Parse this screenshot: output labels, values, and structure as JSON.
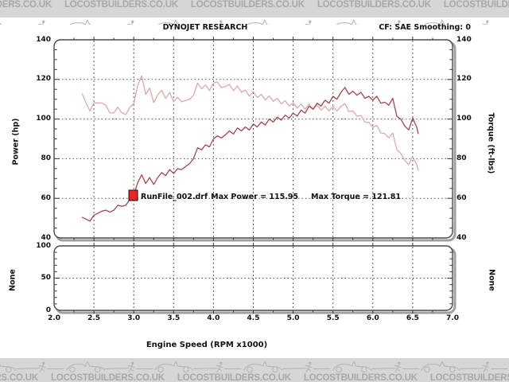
{
  "banner": {
    "text": "LOCOSTBUILDERS.CO.UK",
    "repeat": 6,
    "bg_color": "#d6d6d6",
    "text_color": "#a8a8a8",
    "art_color": "#b4b4b4"
  },
  "header": {
    "title": "DYNOJET RESEARCH",
    "correction": "CF: SAE  Smoothing: 0"
  },
  "main_chart": {
    "y_left_label": "Power (hp)",
    "y_right_label": "Torque (ft-lbs)",
    "y_ticks": [
      "140",
      "120",
      "100",
      "80",
      "60",
      "40"
    ],
    "grid_values": [
      120,
      100,
      80,
      60
    ]
  },
  "lower_chart": {
    "left_label": "None",
    "right_label": "None",
    "y_ticks": [
      "100",
      "50",
      "0"
    ],
    "grid_value": 50
  },
  "x_axis": {
    "title": "Engine Speed (RPM x1000)",
    "ticks": [
      "2.0",
      "2.5",
      "3.0",
      "3.5",
      "4.0",
      "4.5",
      "5.0",
      "5.5",
      "6.0",
      "6.5",
      "7.0"
    ],
    "grid_rpm": [
      2.5,
      3.0,
      3.5,
      4.0,
      4.5,
      5.0,
      5.5,
      6.0,
      6.5
    ]
  },
  "legend": {
    "file_label": "RunFile_002.drf",
    "max_power_label": "Max Power = 115.95",
    "max_torque_label": "Max Torque = 121.81",
    "marker_color": "#ee2222"
  },
  "colors": {
    "plot_border": "#4a4a4a",
    "plot_shadow": "#a0a0a0",
    "gridline": "#555555",
    "tick": "#333333"
  },
  "chart_data": {
    "type": "line",
    "title": "DYNOJET RESEARCH",
    "xlabel": "Engine Speed (RPM x1000)",
    "ylabel_left": "Power (hp)",
    "ylabel_right": "Torque (ft-lbs)",
    "xlim": [
      2.0,
      7.0
    ],
    "ylim": [
      40,
      140
    ],
    "lower_panel_ylim": [
      0,
      100
    ],
    "grid": true,
    "max_power": 115.95,
    "max_torque": 121.81,
    "x_rpm": [
      2.35,
      2.4,
      2.45,
      2.5,
      2.55,
      2.6,
      2.65,
      2.7,
      2.75,
      2.8,
      2.85,
      2.9,
      2.95,
      3.0,
      3.05,
      3.1,
      3.15,
      3.2,
      3.25,
      3.3,
      3.35,
      3.4,
      3.45,
      3.5,
      3.55,
      3.6,
      3.65,
      3.7,
      3.75,
      3.8,
      3.85,
      3.9,
      3.95,
      4.0,
      4.05,
      4.1,
      4.15,
      4.2,
      4.25,
      4.3,
      4.35,
      4.4,
      4.45,
      4.5,
      4.55,
      4.6,
      4.65,
      4.7,
      4.75,
      4.8,
      4.85,
      4.9,
      4.95,
      5.0,
      5.05,
      5.1,
      5.15,
      5.2,
      5.25,
      5.3,
      5.35,
      5.4,
      5.45,
      5.5,
      5.55,
      5.6,
      5.65,
      5.7,
      5.75,
      5.8,
      5.85,
      5.9,
      5.95,
      6.0,
      6.05,
      6.1,
      6.15,
      6.2,
      6.25,
      6.3,
      6.35,
      6.4,
      6.45,
      6.5,
      6.55,
      6.57
    ],
    "series": [
      {
        "name": "Power (hp)",
        "color": "#a6454e",
        "values": [
          50.5,
          49.5,
          48.5,
          51.5,
          52.5,
          53.5,
          54.0,
          53.0,
          54.0,
          56.5,
          56.0,
          56.5,
          59.5,
          61.5,
          68.0,
          71.9,
          67.5,
          70.5,
          67.0,
          70.5,
          73.0,
          71.5,
          74.5,
          72.5,
          75.0,
          74.5,
          76.0,
          77.5,
          80.0,
          85.5,
          84.5,
          87.0,
          86.0,
          90.0,
          91.5,
          90.5,
          92.0,
          94.0,
          92.5,
          95.5,
          94.0,
          96.0,
          94.5,
          97.5,
          96.0,
          98.5,
          97.0,
          100.0,
          98.5,
          101.0,
          99.5,
          102.0,
          100.5,
          103.0,
          101.5,
          104.5,
          103.0,
          106.5,
          105.0,
          108.0,
          106.5,
          109.5,
          108.0,
          111.5,
          110.0,
          113.5,
          115.95,
          112.5,
          114.0,
          112.0,
          113.5,
          110.5,
          111.5,
          109.5,
          111.5,
          108.0,
          108.5,
          107.0,
          110.5,
          101.5,
          100.0,
          96.5,
          94.5,
          100.5,
          96.0,
          92.5
        ]
      },
      {
        "name": "Torque (ft-lbs)",
        "color": "#dcaaaa",
        "values": [
          112.9,
          108.3,
          104.0,
          108.2,
          108.1,
          108.1,
          107.0,
          103.1,
          103.1,
          106.0,
          103.2,
          102.3,
          105.9,
          107.7,
          117.1,
          121.8,
          112.5,
          115.7,
          108.3,
          112.2,
          114.5,
          110.4,
          113.4,
          108.8,
          111.0,
          108.7,
          109.4,
          110.0,
          112.0,
          118.2,
          115.3,
          117.2,
          114.4,
          118.2,
          118.7,
          115.9,
          116.4,
          117.5,
          114.3,
          116.7,
          113.5,
          114.6,
          111.5,
          113.8,
          110.8,
          112.5,
          109.6,
          111.7,
          108.9,
          110.5,
          107.7,
          109.3,
          106.6,
          108.2,
          105.6,
          107.6,
          105.0,
          107.6,
          105.0,
          107.0,
          104.5,
          106.5,
          104.1,
          106.5,
          104.1,
          106.4,
          107.8,
          103.7,
          104.1,
          101.4,
          101.9,
          98.4,
          98.4,
          95.8,
          96.8,
          93.0,
          92.7,
          90.6,
          92.9,
          84.6,
          82.7,
          79.2,
          77.0,
          81.2,
          77.0,
          73.9
        ]
      }
    ]
  }
}
